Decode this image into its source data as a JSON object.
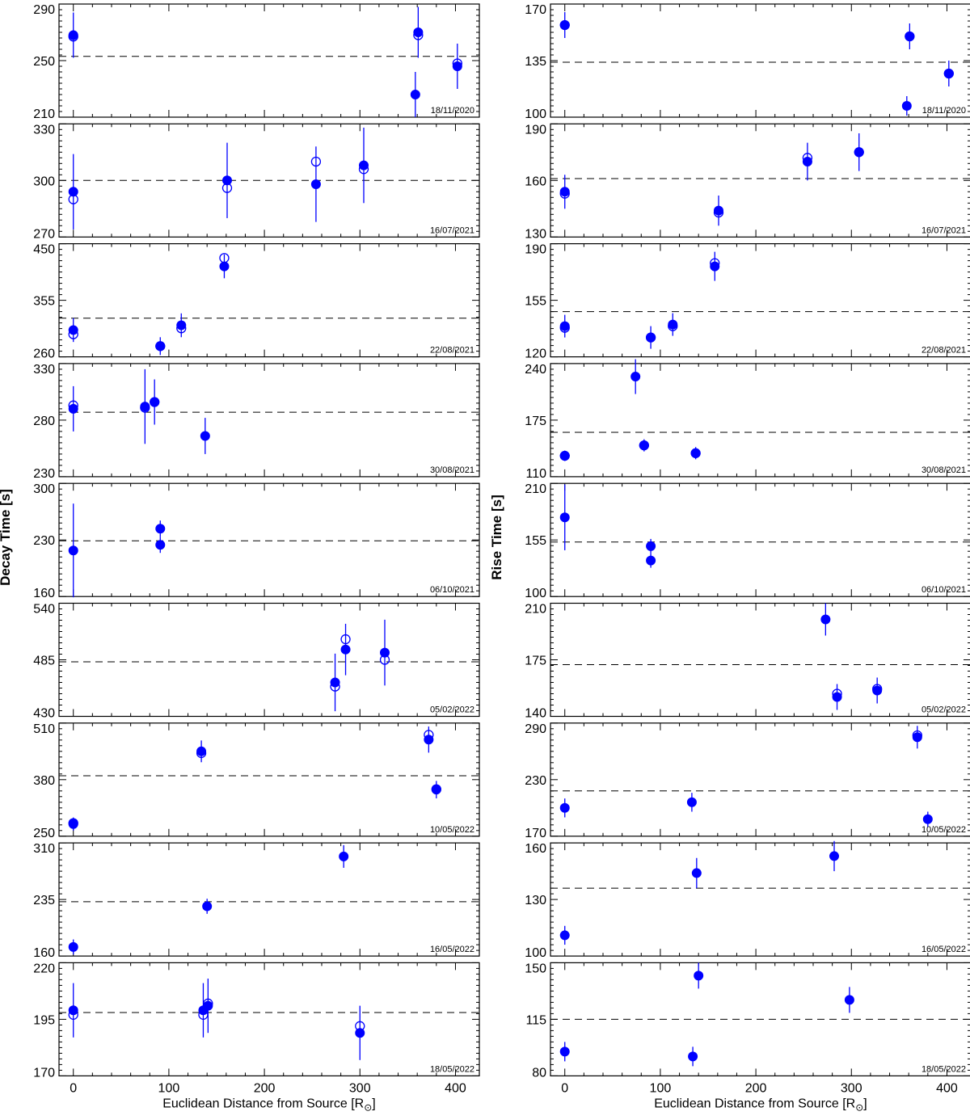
{
  "figure": {
    "left_ylabel": "Decay Time [s]",
    "right_ylabel": "Rise Time [s]",
    "xlabel": "Euclidean Distance from Source [R",
    "xlabel_symbol": "⊙",
    "xlabel_close": "]",
    "xticks": [
      0,
      100,
      200,
      300,
      400
    ],
    "xlim": [
      -15,
      425
    ]
  },
  "colors": {
    "marker": "#0000ff",
    "axis": "#000000",
    "reference_line": "#000000"
  },
  "chart_data": [
    {
      "type": "scatter",
      "panel": "decay",
      "date": "18/11/2020",
      "ylim": [
        210,
        290
      ],
      "yticks": [
        210,
        250,
        290
      ],
      "reference": 253,
      "points": [
        {
          "x": 0,
          "y": 268,
          "open": 267,
          "err": 16
        },
        {
          "x": 358,
          "y": 226,
          "open": null,
          "err": 16
        },
        {
          "x": 361,
          "y": 270,
          "open": 268,
          "err": 18
        },
        {
          "x": 402,
          "y": 246,
          "open": 248,
          "err": 16
        }
      ]
    },
    {
      "type": "scatter",
      "panel": "rise",
      "date": "18/11/2020",
      "ylim": [
        100,
        170
      ],
      "yticks": [
        100,
        135,
        170
      ],
      "reference": 134,
      "points": [
        {
          "x": 0,
          "y": 157,
          "open": 157,
          "err": 8
        },
        {
          "x": 358,
          "y": 107,
          "open": null,
          "err": 6
        },
        {
          "x": 361,
          "y": 150,
          "open": 150,
          "err": 8
        },
        {
          "x": 402,
          "y": 127,
          "open": 127,
          "err": 8
        }
      ]
    },
    {
      "type": "scatter",
      "panel": "decay",
      "date": "16/07/2021",
      "ylim": [
        270,
        330
      ],
      "yticks": [
        270,
        300,
        330
      ],
      "reference": 300,
      "points": [
        {
          "x": 0,
          "y": 294,
          "open": 290,
          "err": 20
        },
        {
          "x": 161,
          "y": 300,
          "open": 296,
          "err": 20
        },
        {
          "x": 254,
          "y": 298,
          "open": 310,
          "err": 20
        },
        {
          "x": 304,
          "y": 308,
          "open": 306,
          "err": 20
        }
      ]
    },
    {
      "type": "scatter",
      "panel": "rise",
      "date": "16/07/2021",
      "ylim": [
        130,
        190
      ],
      "yticks": [
        130,
        160,
        190
      ],
      "reference": 161,
      "points": [
        {
          "x": 0,
          "y": 154,
          "open": 153,
          "err": 9
        },
        {
          "x": 161,
          "y": 144,
          "open": 143,
          "err": 8
        },
        {
          "x": 254,
          "y": 170,
          "open": 172,
          "err": 10
        },
        {
          "x": 308,
          "y": 175,
          "open": 175,
          "err": 10
        }
      ]
    },
    {
      "type": "scatter",
      "panel": "decay",
      "date": "22/08/2021",
      "ylim": [
        260,
        450
      ],
      "yticks": [
        260,
        355,
        450
      ],
      "reference": 325,
      "points": [
        {
          "x": 0,
          "y": 305,
          "open": 298,
          "err": 20
        },
        {
          "x": 91,
          "y": 278,
          "open": 278,
          "err": 15
        },
        {
          "x": 113,
          "y": 313,
          "open": 308,
          "err": 20
        },
        {
          "x": 158,
          "y": 412,
          "open": 426,
          "err": 20
        }
      ]
    },
    {
      "type": "scatter",
      "panel": "rise",
      "date": "22/08/2021",
      "ylim": [
        120,
        190
      ],
      "yticks": [
        120,
        155,
        190
      ],
      "reference": 148,
      "points": [
        {
          "x": 0,
          "y": 139,
          "open": 138,
          "err": 7
        },
        {
          "x": 90,
          "y": 132,
          "open": 132,
          "err": 7
        },
        {
          "x": 113,
          "y": 140,
          "open": 139,
          "err": 7
        },
        {
          "x": 157,
          "y": 176,
          "open": 178,
          "err": 9
        }
      ]
    },
    {
      "type": "scatter",
      "panel": "decay",
      "date": "30/08/2021",
      "ylim": [
        230,
        330
      ],
      "yticks": [
        230,
        280,
        330
      ],
      "reference": 287,
      "points": [
        {
          "x": 0,
          "y": 290,
          "open": 293,
          "err": 20
        },
        {
          "x": 75,
          "y": 292,
          "open": 291,
          "err": 33
        },
        {
          "x": 85,
          "y": 296,
          "open": 296,
          "err": 20
        },
        {
          "x": 138,
          "y": 266,
          "open": null,
          "err": 16
        }
      ]
    },
    {
      "type": "scatter",
      "panel": "rise",
      "date": "30/08/2021",
      "ylim": [
        110,
        240
      ],
      "yticks": [
        110,
        175,
        240
      ],
      "reference": 161,
      "points": [
        {
          "x": 0,
          "y": 134,
          "open": 134,
          "err": 6
        },
        {
          "x": 74,
          "y": 225,
          "open": null,
          "err": 20
        },
        {
          "x": 83,
          "y": 146,
          "open": 146,
          "err": 7
        },
        {
          "x": 137,
          "y": 137,
          "open": 137,
          "err": 7
        }
      ]
    },
    {
      "type": "scatter",
      "panel": "decay",
      "date": "06/10/2021",
      "ylim": [
        160,
        300
      ],
      "yticks": [
        160,
        230,
        300
      ],
      "reference": 229,
      "points": [
        {
          "x": 0,
          "y": 217,
          "open": null,
          "err": 58
        },
        {
          "x": 91,
          "y": 244,
          "open": null,
          "err": 10
        },
        {
          "x": 91,
          "y": 224,
          "open": null,
          "err": 10
        }
      ]
    },
    {
      "type": "scatter",
      "panel": "rise",
      "date": "06/10/2021",
      "ylim": [
        100,
        210
      ],
      "yticks": [
        100,
        155,
        210
      ],
      "reference": 153,
      "points": [
        {
          "x": 0,
          "y": 177,
          "open": null,
          "err": 32
        },
        {
          "x": 90,
          "y": 149,
          "open": null,
          "err": 7
        },
        {
          "x": 90,
          "y": 135,
          "open": null,
          "err": 7
        }
      ]
    },
    {
      "type": "scatter",
      "panel": "decay",
      "date": "05/02/2022",
      "ylim": [
        430,
        540
      ],
      "yticks": [
        430,
        485,
        540
      ],
      "reference": 483,
      "points": [
        {
          "x": 274,
          "y": 463,
          "open": 459,
          "err": 28
        },
        {
          "x": 285,
          "y": 495,
          "open": 505,
          "err": 25
        },
        {
          "x": 326,
          "y": 492,
          "open": 485,
          "err": 32
        }
      ]
    },
    {
      "type": "scatter",
      "panel": "rise",
      "date": "05/02/2022",
      "ylim": [
        140,
        210
      ],
      "yticks": [
        140,
        175,
        210
      ],
      "reference": 172,
      "points": [
        {
          "x": 273,
          "y": 200,
          "open": null,
          "err": 10
        },
        {
          "x": 285,
          "y": 152,
          "open": 154,
          "err": 8
        },
        {
          "x": 327,
          "y": 156,
          "open": 157,
          "err": 8
        }
      ]
    },
    {
      "type": "scatter",
      "panel": "decay",
      "date": "10/05/2022",
      "ylim": [
        250,
        510
      ],
      "yticks": [
        250,
        380,
        510
      ],
      "reference": 389,
      "points": [
        {
          "x": 0,
          "y": 278,
          "open": 280,
          "err": 15
        },
        {
          "x": 134,
          "y": 445,
          "open": 441,
          "err": 25
        },
        {
          "x": 372,
          "y": 472,
          "open": 483,
          "err": 30
        },
        {
          "x": 380,
          "y": 357,
          "open": 358,
          "err": 20
        }
      ]
    },
    {
      "type": "scatter",
      "panel": "rise",
      "date": "10/05/2022",
      "ylim": [
        170,
        290
      ],
      "yticks": [
        170,
        230,
        290
      ],
      "reference": 218,
      "points": [
        {
          "x": 0,
          "y": 200,
          "open": null,
          "err": 10
        },
        {
          "x": 133,
          "y": 206,
          "open": null,
          "err": 10
        },
        {
          "x": 369,
          "y": 275,
          "open": 277,
          "err": 12
        },
        {
          "x": 380,
          "y": 188,
          "open": null,
          "err": 8
        }
      ]
    },
    {
      "type": "scatter",
      "panel": "decay",
      "date": "16/05/2022",
      "ylim": [
        160,
        310
      ],
      "yticks": [
        160,
        235,
        310
      ],
      "reference": 232,
      "points": [
        {
          "x": 0,
          "y": 172,
          "open": null,
          "err": 10
        },
        {
          "x": 140,
          "y": 226,
          "open": null,
          "err": 10
        },
        {
          "x": 283,
          "y": 292,
          "open": null,
          "err": 15
        }
      ]
    },
    {
      "type": "scatter",
      "panel": "rise",
      "date": "16/05/2022",
      "ylim": [
        100,
        160
      ],
      "yticks": [
        100,
        130,
        160
      ],
      "reference": 136,
      "points": [
        {
          "x": 0,
          "y": 111,
          "open": null,
          "err": 5
        },
        {
          "x": 138,
          "y": 144,
          "open": null,
          "err": 8
        },
        {
          "x": 282,
          "y": 153,
          "open": null,
          "err": 8
        }
      ]
    },
    {
      "type": "scatter",
      "panel": "decay",
      "date": "18/05/2022",
      "ylim": [
        170,
        220
      ],
      "yticks": [
        170,
        195,
        220
      ],
      "reference": 198,
      "points": [
        {
          "x": 0,
          "y": 199,
          "open": 197,
          "err": 12
        },
        {
          "x": 136,
          "y": 199,
          "open": 197,
          "err": 12
        },
        {
          "x": 141,
          "y": 201,
          "open": 202,
          "err": 12
        },
        {
          "x": 300,
          "y": 189,
          "open": 192,
          "err": 12
        }
      ]
    },
    {
      "type": "scatter",
      "panel": "rise",
      "date": "18/05/2022",
      "ylim": [
        80,
        150
      ],
      "yticks": [
        80,
        115,
        150
      ],
      "reference": 115,
      "points": [
        {
          "x": 0,
          "y": 95,
          "open": null,
          "err": 6
        },
        {
          "x": 134,
          "y": 92,
          "open": null,
          "err": 6
        },
        {
          "x": 140,
          "y": 142,
          "open": null,
          "err": 8
        },
        {
          "x": 298,
          "y": 127,
          "open": null,
          "err": 8
        }
      ]
    }
  ]
}
